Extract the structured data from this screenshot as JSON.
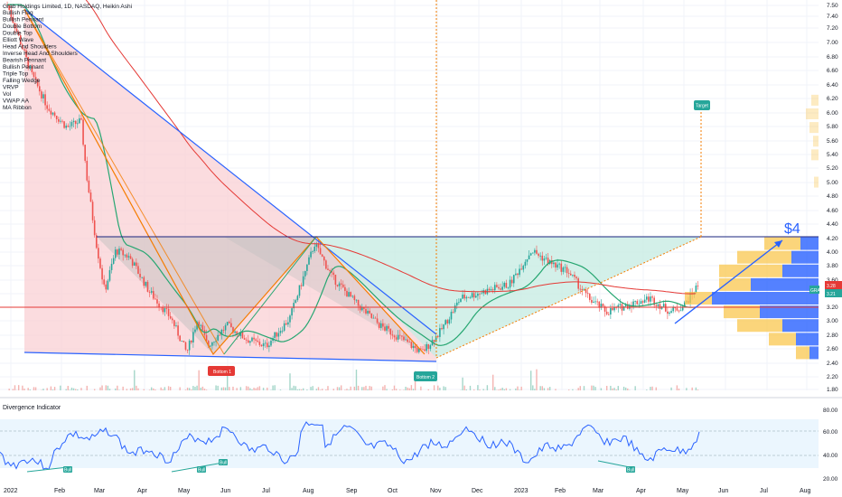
{
  "header": {
    "title": "Grab Holdings Limited, 1D, NASDAQ, Heikin Ashi",
    "legend_items": [
      "Bullish Flag",
      "Bullish Pennant",
      "Double Bottom",
      "Double Top",
      "Elliott Wave",
      "Head And Shoulders",
      "Inverse Head And Shoulders",
      "Bearish Pennant",
      "Bullish Pennant",
      "Triple Top",
      "Falling Wedge",
      "VRVP",
      "Vol",
      "VWAP AA",
      "MA Ribbon"
    ]
  },
  "annotations": {
    "bottom1": "Bottom 1",
    "bottom2": "Bottom 2",
    "target": "Target",
    "price_target": "$4"
  },
  "price_tags": {
    "symbol": "GRAB",
    "last": "3.28",
    "prev": "3.21"
  },
  "oscillator": {
    "title": "Divergence Indicator",
    "bull_label": "Bull",
    "ticks": [
      "80.00",
      "60.00",
      "40.00",
      "20.00"
    ]
  },
  "colors": {
    "trendline": "#2962ff",
    "orange": "#f57c00",
    "ma_green": "#26a671",
    "ma_red": "#e53935",
    "candle_up": "#26a69a",
    "candle_down": "#ef5350",
    "vrvp_up": "#f9c74f",
    "vrvp_down": "#2962ff"
  },
  "chart_data": {
    "type": "candlestick",
    "x_ticks": [
      "2022",
      "Feb",
      "Mar",
      "Apr",
      "May",
      "Jun",
      "Jul",
      "Aug",
      "Sep",
      "Oct",
      "Nov",
      "Dec",
      "2023",
      "Feb",
      "Mar",
      "Apr",
      "May",
      "Jun",
      "Jul",
      "Aug"
    ],
    "y_ticks": [
      "7.50",
      "7.40",
      "7.20",
      "7.00",
      "6.80",
      "6.60",
      "6.40",
      "6.20",
      "6.00",
      "5.80",
      "5.60",
      "5.40",
      "5.20",
      "5.00",
      "4.80",
      "4.60",
      "4.40",
      "4.20",
      "4.00",
      "3.80",
      "3.60",
      "3.40",
      "3.20",
      "3.00",
      "2.80",
      "2.60",
      "2.40",
      "2.20",
      "1.80"
    ],
    "close_path": [
      [
        "2022-01-03",
        7.4
      ],
      [
        "2022-01-10",
        7.0
      ],
      [
        "2022-01-20",
        6.4
      ],
      [
        "2022-02-01",
        5.9
      ],
      [
        "2022-02-15",
        5.6
      ],
      [
        "2022-02-25",
        5.7
      ],
      [
        "2022-03-01",
        4.9
      ],
      [
        "2022-03-08",
        3.9
      ],
      [
        "2022-03-14",
        3.2
      ],
      [
        "2022-03-22",
        3.8
      ],
      [
        "2022-04-01",
        3.7
      ],
      [
        "2022-04-15",
        3.2
      ],
      [
        "2022-05-01",
        2.8
      ],
      [
        "2022-05-12",
        2.3
      ],
      [
        "2022-05-20",
        2.8
      ],
      [
        "2022-05-27",
        2.4
      ],
      [
        "2022-06-10",
        2.7
      ],
      [
        "2022-06-24",
        2.5
      ],
      [
        "2022-07-08",
        2.4
      ],
      [
        "2022-07-25",
        2.8
      ],
      [
        "2022-08-12",
        3.9
      ],
      [
        "2022-08-25",
        3.4
      ],
      [
        "2022-09-12",
        3.0
      ],
      [
        "2022-09-28",
        2.7
      ],
      [
        "2022-10-14",
        2.5
      ],
      [
        "2022-10-28",
        2.3
      ],
      [
        "2022-11-10",
        2.6
      ],
      [
        "2022-11-25",
        3.1
      ],
      [
        "2022-12-12",
        3.2
      ],
      [
        "2022-12-30",
        3.3
      ],
      [
        "2023-01-15",
        3.8
      ],
      [
        "2023-01-30",
        3.6
      ],
      [
        "2023-02-10",
        3.5
      ],
      [
        "2023-02-25",
        3.1
      ],
      [
        "2023-03-10",
        2.9
      ],
      [
        "2023-03-25",
        3.0
      ],
      [
        "2023-04-10",
        3.1
      ],
      [
        "2023-04-25",
        2.9
      ],
      [
        "2023-05-05",
        3.0
      ],
      [
        "2023-05-15",
        3.3
      ]
    ],
    "horizontal_levels": [
      4.0,
      3.0
    ],
    "price_target": 4.0
  }
}
